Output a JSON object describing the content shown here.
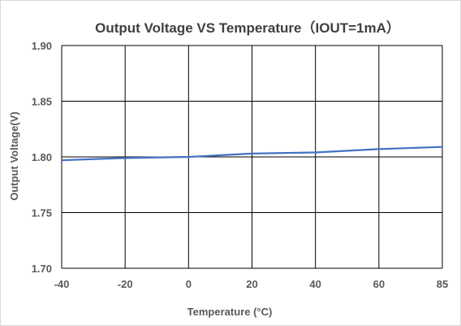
{
  "chart_data": {
    "type": "line",
    "title": "Output Voltage VS Temperature（IOUT=1mA）",
    "xlabel": "Temperature (°C)",
    "ylabel": "Output Voltage(V)",
    "x_categories": [
      "-40",
      "-20",
      "0",
      "20",
      "40",
      "60",
      "85"
    ],
    "ylim": [
      1.7,
      1.9
    ],
    "y_ticks": [
      "1.70",
      "1.75",
      "1.80",
      "1.85",
      "1.90"
    ],
    "grid": true,
    "legend": "none",
    "series": [
      {
        "x": [
          -40,
          -20,
          0,
          20,
          40,
          60,
          85
        ],
        "values": [
          1.797,
          1.799,
          1.8,
          1.803,
          1.804,
          1.807,
          1.809
        ],
        "color": "#4472c4"
      }
    ]
  }
}
